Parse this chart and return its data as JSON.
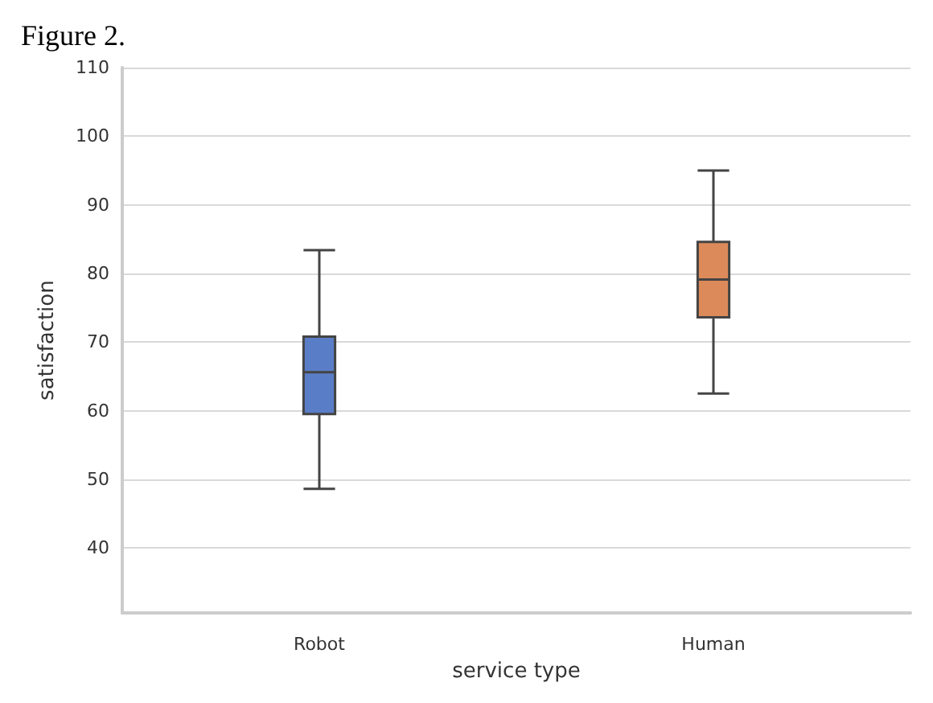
{
  "chart_data": {
    "type": "box",
    "title": "Figure 2.",
    "xlabel": "service type",
    "ylabel": "satisfaction",
    "categories": [
      "Robot",
      "Human"
    ],
    "boxes": [
      {
        "low": 48.6,
        "q1": 59.5,
        "median": 65.6,
        "q3": 70.8,
        "high": 83.4
      },
      {
        "low": 62.5,
        "q1": 73.6,
        "median": 79.1,
        "q3": 84.6,
        "high": 95
      }
    ],
    "colors": [
      "#5a7dc7",
      "#dd8a5a"
    ],
    "ylim": [
      30.5,
      110
    ],
    "yticks": [
      40,
      50,
      60,
      70,
      80,
      90,
      100,
      110
    ],
    "grid": "y"
  }
}
